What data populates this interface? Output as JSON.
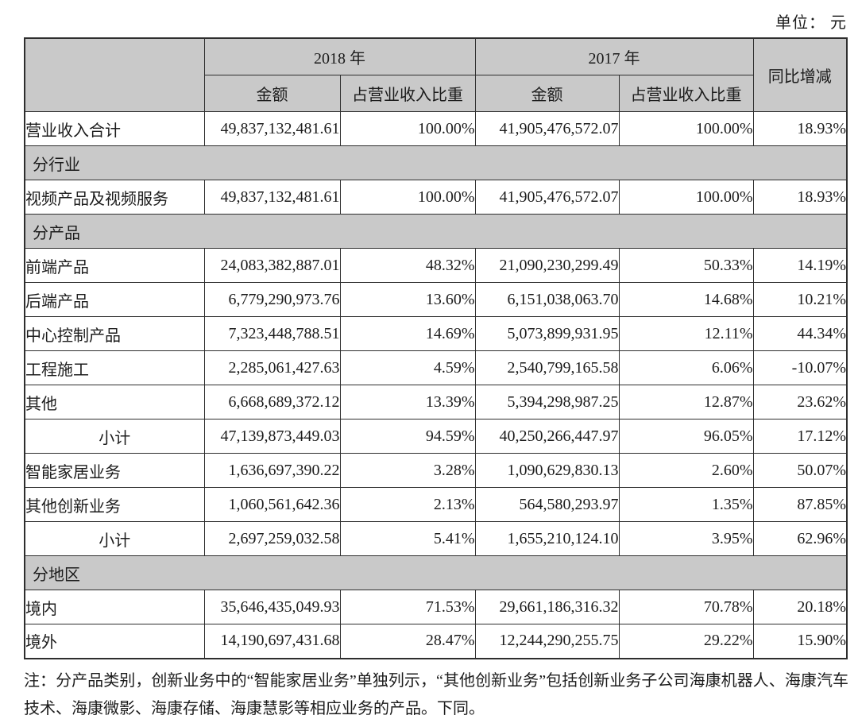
{
  "unit_label": "单位： 元",
  "colors": {
    "section_bg": "#c9c9c9",
    "border": "#2e2e2e",
    "text": "#1c1c1c"
  },
  "table": {
    "header": {
      "year_2018": "2018 年",
      "year_2017": "2017 年",
      "yoy": "同比增减",
      "amount_2018": "金额",
      "share_2018": "占营业收入比重",
      "amount_2017": "金额",
      "share_2017": "占营业收入比重"
    },
    "rows": [
      {
        "type": "data",
        "label": "营业收入合计",
        "a2018": "49,837,132,481.61",
        "s2018": "100.00%",
        "a2017": "41,905,476,572.07",
        "s2017": "100.00%",
        "yoy": "18.93%"
      },
      {
        "type": "section",
        "label": "分行业"
      },
      {
        "type": "data",
        "label": "视频产品及视频服务",
        "a2018": "49,837,132,481.61",
        "s2018": "100.00%",
        "a2017": "41,905,476,572.07",
        "s2017": "100.00%",
        "yoy": "18.93%"
      },
      {
        "type": "section",
        "label": "分产品"
      },
      {
        "type": "data",
        "label": "前端产品",
        "a2018": "24,083,382,887.01",
        "s2018": "48.32%",
        "a2017": "21,090,230,299.49",
        "s2017": "50.33%",
        "yoy": "14.19%"
      },
      {
        "type": "data",
        "label": "后端产品",
        "a2018": "6,779,290,973.76",
        "s2018": "13.60%",
        "a2017": "6,151,038,063.70",
        "s2017": "14.68%",
        "yoy": "10.21%"
      },
      {
        "type": "data",
        "label": "中心控制产品",
        "a2018": "7,323,448,788.51",
        "s2018": "14.69%",
        "a2017": "5,073,899,931.95",
        "s2017": "12.11%",
        "yoy": "44.34%"
      },
      {
        "type": "data",
        "label": "工程施工",
        "a2018": "2,285,061,427.63",
        "s2018": "4.59%",
        "a2017": "2,540,799,165.58",
        "s2017": "6.06%",
        "yoy": "-10.07%"
      },
      {
        "type": "data",
        "label": "其他",
        "a2018": "6,668,689,372.12",
        "s2018": "13.39%",
        "a2017": "5,394,298,987.25",
        "s2017": "12.87%",
        "yoy": "23.62%"
      },
      {
        "type": "subtotal",
        "label": "小计",
        "a2018": "47,139,873,449.03",
        "s2018": "94.59%",
        "a2017": "40,250,266,447.97",
        "s2017": "96.05%",
        "yoy": "17.12%"
      },
      {
        "type": "data",
        "label": "智能家居业务",
        "a2018": "1,636,697,390.22",
        "s2018": "3.28%",
        "a2017": "1,090,629,830.13",
        "s2017": "2.60%",
        "yoy": "50.07%"
      },
      {
        "type": "data",
        "label": "其他创新业务",
        "a2018": "1,060,561,642.36",
        "s2018": "2.13%",
        "a2017": "564,580,293.97",
        "s2017": "1.35%",
        "yoy": "87.85%"
      },
      {
        "type": "subtotal",
        "label": "小计",
        "a2018": "2,697,259,032.58",
        "s2018": "5.41%",
        "a2017": "1,655,210,124.10",
        "s2017": "3.95%",
        "yoy": "62.96%"
      },
      {
        "type": "section",
        "label": "分地区"
      },
      {
        "type": "data",
        "label": "境内",
        "a2018": "35,646,435,049.93",
        "s2018": "71.53%",
        "a2017": "29,661,186,316.32",
        "s2017": "70.78%",
        "yoy": "20.18%"
      },
      {
        "type": "data",
        "label": "境外",
        "a2018": "14,190,697,431.68",
        "s2018": "28.47%",
        "a2017": "12,244,290,255.75",
        "s2017": "29.22%",
        "yoy": "15.90%"
      }
    ]
  },
  "note": "注：分产品类别，创新业务中的“智能家居业务”单独列示，“其他创新业务”包括创新业务子公司海康机器人、海康汽车技术、海康微影、海康存储、海康慧影等相应业务的产品。下同。"
}
